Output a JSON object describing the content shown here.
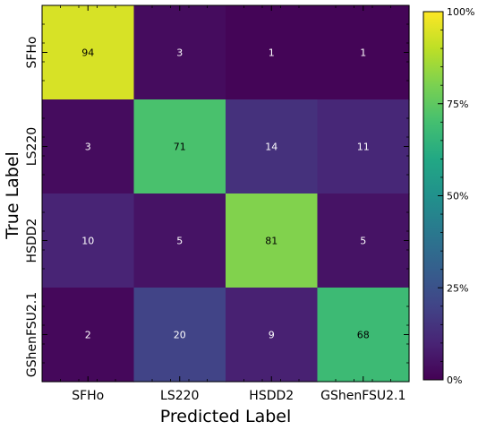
{
  "chart_data": {
    "type": "heatmap",
    "xlabel": "Predicted Label",
    "ylabel": "True Label",
    "x_categories": [
      "SFHo",
      "LS220",
      "HSDD2",
      "GShenFSU2.1"
    ],
    "y_categories": [
      "SFHo",
      "LS220",
      "HSDD2",
      "GShenFSU2.1"
    ],
    "values": [
      [
        94,
        3,
        1,
        1
      ],
      [
        3,
        71,
        14,
        11
      ],
      [
        10,
        5,
        81,
        5
      ],
      [
        2,
        20,
        9,
        68
      ]
    ],
    "colormap": "viridis",
    "vmin": 0,
    "vmax": 100,
    "colorbar_ticks": [
      "0%",
      "25%",
      "50%",
      "75%",
      "100%"
    ],
    "colorbar_tick_values": [
      0,
      25,
      50,
      75,
      100
    ]
  }
}
